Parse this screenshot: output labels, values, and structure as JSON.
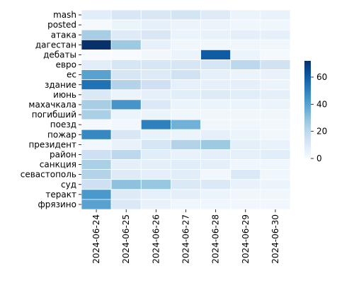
{
  "chart_data": {
    "type": "heatmap",
    "title": "",
    "xlabel": "",
    "ylabel": "",
    "rows": [
      "mash",
      "posted",
      "атака",
      "дагестан",
      "дебаты",
      "евро",
      "ес",
      "здание",
      "июнь",
      "махачкала",
      "погибший",
      "поезд",
      "пожар",
      "президент",
      "район",
      "санкция",
      "севастополь",
      "суд",
      "теракт",
      "фрязино"
    ],
    "columns": [
      "2024-06-24",
      "2024-06-25",
      "2024-06-26",
      "2024-06-27",
      "2024-06-28",
      "2024-06-29",
      "2024-06-30"
    ],
    "values": [
      [
        8,
        11,
        11,
        13,
        9,
        4,
        5
      ],
      [
        1,
        4,
        6,
        4,
        4,
        3,
        3
      ],
      [
        25,
        9,
        11,
        4,
        5,
        7,
        6
      ],
      [
        72,
        27,
        6,
        3,
        3,
        3,
        3
      ],
      [
        0,
        0,
        2,
        4,
        60,
        4,
        1
      ],
      [
        8,
        12,
        12,
        12,
        12,
        20,
        14
      ],
      [
        40,
        12,
        9,
        14,
        6,
        4,
        5
      ],
      [
        54,
        22,
        15,
        6,
        6,
        7,
        4
      ],
      [
        10,
        4,
        6,
        8,
        9,
        8,
        7
      ],
      [
        25,
        44,
        10,
        4,
        4,
        4,
        4
      ],
      [
        24,
        4,
        4,
        3,
        3,
        3,
        3
      ],
      [
        1,
        2,
        50,
        35,
        3,
        3,
        2
      ],
      [
        48,
        11,
        5,
        4,
        6,
        4,
        2
      ],
      [
        2,
        5,
        12,
        22,
        27,
        7,
        5
      ],
      [
        15,
        20,
        8,
        5,
        7,
        6,
        8
      ],
      [
        24,
        7,
        7,
        8,
        7,
        3,
        3
      ],
      [
        22,
        9,
        7,
        8,
        2,
        10,
        3
      ],
      [
        15,
        30,
        28,
        10,
        10,
        5,
        4
      ],
      [
        43,
        9,
        6,
        7,
        4,
        3,
        3
      ],
      [
        40,
        10,
        5,
        3,
        3,
        2,
        2
      ]
    ],
    "colorbar": {
      "min": 0,
      "max": 72,
      "ticks": [
        0,
        20,
        40,
        60
      ],
      "colormap": "Blues",
      "low_color": "#f7fbff",
      "high_color": "#08306b"
    },
    "cell_border_color": "#ffffff"
  }
}
